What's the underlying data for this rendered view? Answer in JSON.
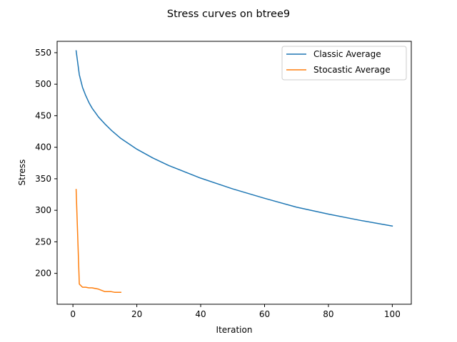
{
  "chart_data": {
    "type": "line",
    "title": "Stress curves on btree9",
    "xlabel": "Iteration",
    "ylabel": "Stress",
    "xlim": [
      -4.95,
      105.95
    ],
    "ylim": [
      151,
      568
    ],
    "xticks": [
      0,
      20,
      40,
      60,
      80,
      100
    ],
    "yticks": [
      200,
      250,
      300,
      350,
      400,
      450,
      500,
      550
    ],
    "grid": false,
    "legend_position": "top-right",
    "series": [
      {
        "name": "Classic Average",
        "color": "#1f77b4",
        "x": [
          1,
          2,
          3,
          4,
          5,
          6,
          7,
          8,
          10,
          12,
          15,
          20,
          25,
          30,
          40,
          50,
          60,
          70,
          80,
          90,
          100
        ],
        "y": [
          553,
          515,
          495,
          482,
          471,
          462,
          455,
          448,
          437,
          427,
          414,
          397,
          383,
          371,
          351,
          334,
          319,
          305,
          294,
          284,
          275
        ]
      },
      {
        "name": "Stocastic Average",
        "color": "#ff7f0e",
        "x": [
          1,
          2,
          3,
          4,
          5,
          6,
          7,
          8,
          9,
          10,
          11,
          12,
          13,
          14,
          15
        ],
        "y": [
          333,
          183,
          178,
          178,
          177,
          177,
          176,
          175,
          173,
          171,
          171,
          171,
          170,
          170,
          170
        ]
      }
    ]
  }
}
